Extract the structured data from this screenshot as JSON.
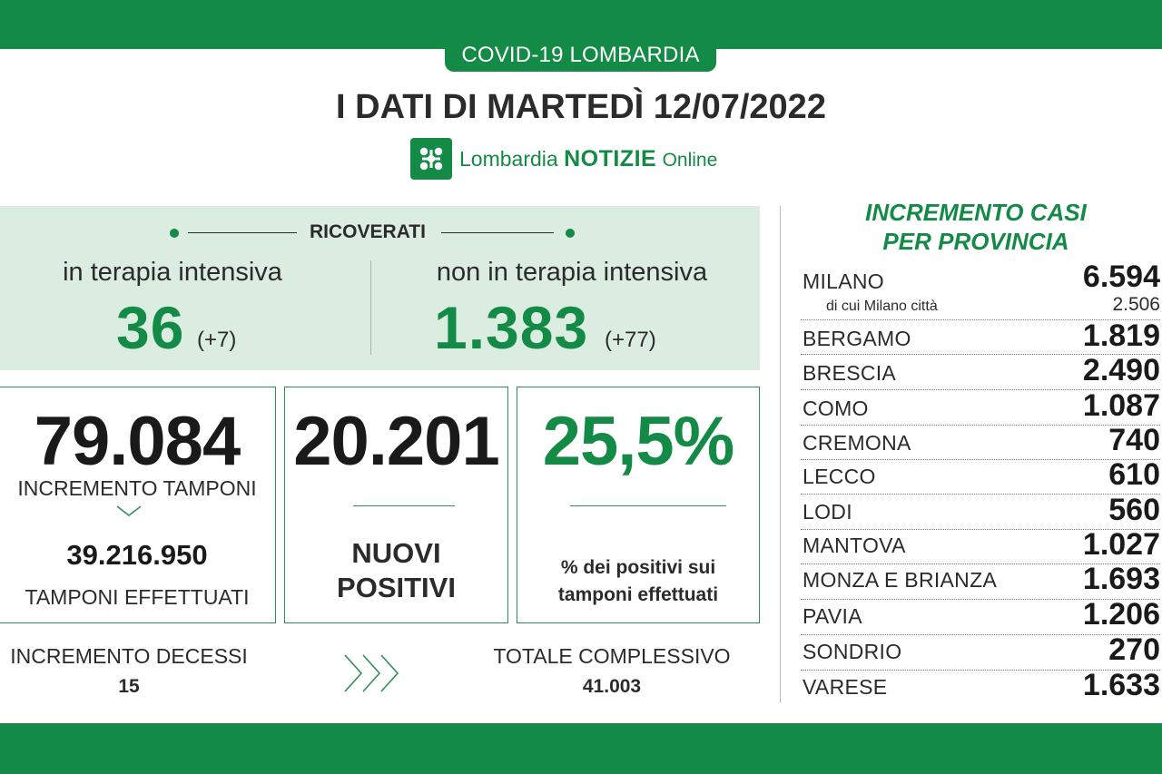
{
  "header": {
    "pill": "COVID-19 LOMBARDIA",
    "headline": "I DATI DI MARTEDÌ 12/07/2022",
    "brand_part1": "Lombardia",
    "brand_part2": "NOTIZIE",
    "brand_part3": "Online"
  },
  "ricoverati": {
    "title": "RICOVERATI",
    "intensiva_label": "in terapia intensiva",
    "intensiva_value": "36",
    "intensiva_delta": "(+7)",
    "non_intensiva_label": "non in terapia intensiva",
    "non_intensiva_value": "1.383",
    "non_intensiva_delta": "(+77)"
  },
  "tamponi": {
    "value": "79.084",
    "label": "INCREMENTO TAMPONI",
    "total": "39.216.950",
    "total_label": "TAMPONI EFFETTUATI"
  },
  "positivi": {
    "value": "20.201",
    "label_line1": "NUOVI",
    "label_line2": "POSITIVI"
  },
  "percentuale": {
    "value": "25,5%",
    "label_line1": "% dei positivi sui",
    "label_line2": "tamponi effettuati"
  },
  "decessi": {
    "label": "INCREMENTO DECESSI",
    "value": "15",
    "total_label": "TOTALE COMPLESSIVO",
    "total_value": "41.003"
  },
  "province": {
    "title_line1": "INCREMENTO CASI",
    "title_line2": "PER PROVINCIA",
    "milano_sub_label": "di cui Milano città",
    "milano_sub_value": "2.506",
    "rows": [
      {
        "name": "MILANO",
        "value": "6.594"
      },
      {
        "name": "BERGAMO",
        "value": "1.819"
      },
      {
        "name": "BRESCIA",
        "value": "2.490"
      },
      {
        "name": "COMO",
        "value": "1.087"
      },
      {
        "name": "CREMONA",
        "value": "740"
      },
      {
        "name": "LECCO",
        "value": "610"
      },
      {
        "name": "LODI",
        "value": "560"
      },
      {
        "name": "MANTOVA",
        "value": "1.027"
      },
      {
        "name": "MONZA E BRIANZA",
        "value": "1.693"
      },
      {
        "name": "PAVIA",
        "value": "1.206"
      },
      {
        "name": "SONDRIO",
        "value": "270"
      },
      {
        "name": "VARESE",
        "value": "1.633"
      }
    ]
  },
  "colors": {
    "brand_green": "#138a45",
    "panel_green": "#dbece1"
  }
}
